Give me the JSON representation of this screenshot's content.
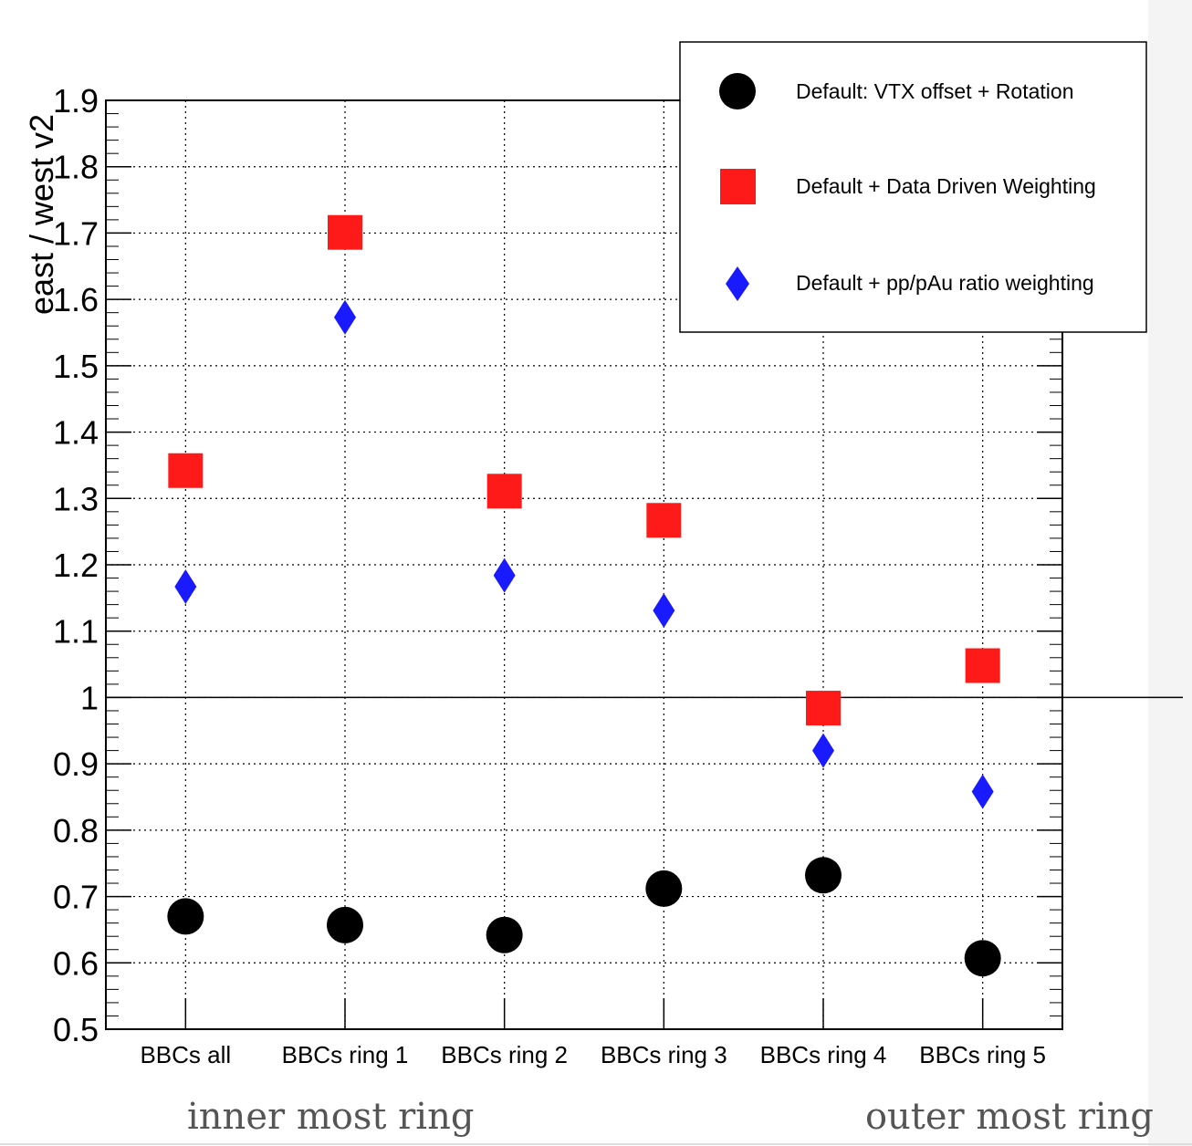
{
  "chart_data": {
    "type": "scatter",
    "categories": [
      "BBCs all",
      "BBCs ring 1",
      "BBCs ring 2",
      "BBCs ring 3",
      "BBCs ring 4",
      "BBCs ring 5"
    ],
    "ylabel": "east / west v2",
    "ylim": [
      0.5,
      1.9
    ],
    "yticks": [
      "0.5",
      "0.6",
      "0.7",
      "0.8",
      "0.9",
      "1",
      "1.1",
      "1.2",
      "1.3",
      "1.4",
      "1.5",
      "1.6",
      "1.7",
      "1.8",
      "1.9"
    ],
    "grid": true,
    "reference_line": 1.0,
    "legend_position": "top-right",
    "series": [
      {
        "name": "Default: VTX offset + Rotation",
        "marker": "circle",
        "color": "#000000",
        "values": [
          0.67,
          0.657,
          0.642,
          0.712,
          0.732,
          0.607
        ]
      },
      {
        "name": "Default + Data Driven Weighting",
        "marker": "square",
        "color": "#ff1a1a",
        "values": [
          1.342,
          1.701,
          1.311,
          1.267,
          0.984,
          1.048
        ]
      },
      {
        "name": "Default + pp/pAu ratio weighting",
        "marker": "diamond",
        "color": "#1a1aff",
        "values": [
          1.167,
          1.573,
          1.184,
          1.131,
          0.92,
          0.858
        ]
      }
    ]
  },
  "annotations": {
    "left": "inner most ring",
    "right": "outer most ring"
  }
}
